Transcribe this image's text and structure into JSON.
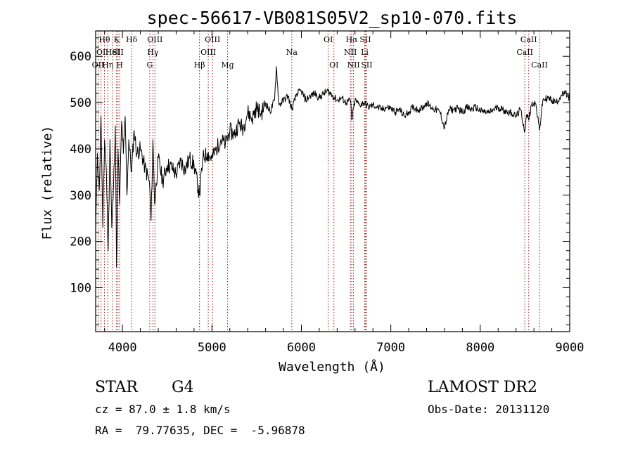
{
  "chart_data": {
    "type": "line",
    "title": "spec-56617-VB081S05V2_sp10-070.fits",
    "xlabel": "Wavelength (Å)",
    "ylabel": "Flux (relative)",
    "xlim": [
      3700,
      9000
    ],
    "ylim": [
      5,
      655
    ],
    "xticks": [
      4000,
      5000,
      6000,
      7000,
      8000,
      9000
    ],
    "yticks": [
      100,
      200,
      300,
      400,
      500,
      600
    ],
    "grid": false,
    "line_color": "#000000",
    "marker_color": "#8b1a1a",
    "series": [
      {
        "x": [
          3700,
          3720,
          3740,
          3760,
          3780,
          3800,
          3820,
          3840,
          3860,
          3880,
          3900,
          3920,
          3933,
          3950,
          3968,
          3990,
          4010,
          4030,
          4050,
          4070,
          4102,
          4130,
          4160,
          4200,
          4250,
          4300,
          4320,
          4340,
          4360,
          4400,
          4450,
          4500,
          4550,
          4600,
          4650,
          4700,
          4750,
          4800,
          4861,
          4900,
          4950,
          5000,
          5050,
          5100,
          5150,
          5200,
          5250,
          5300,
          5350,
          5400,
          5450,
          5500,
          5550,
          5600,
          5650,
          5700,
          5720,
          5750,
          5800,
          5850,
          5893,
          5950,
          6000,
          6050,
          6100,
          6150,
          6200,
          6250,
          6300,
          6350,
          6400,
          6450,
          6500,
          6550,
          6563,
          6600,
          6650,
          6700,
          6750,
          6800,
          6850,
          6900,
          6950,
          7000,
          7050,
          7100,
          7150,
          7200,
          7250,
          7300,
          7350,
          7400,
          7450,
          7500,
          7550,
          7600,
          7650,
          7700,
          7750,
          7800,
          7850,
          7900,
          7950,
          8000,
          8050,
          8100,
          8150,
          8200,
          8250,
          8300,
          8350,
          8400,
          8450,
          8498,
          8520,
          8542,
          8570,
          8600,
          8620,
          8662,
          8700,
          8750,
          8800,
          8850,
          8900,
          8950,
          9000
        ],
        "y": [
          220,
          390,
          310,
          470,
          230,
          420,
          350,
          180,
          420,
          230,
          320,
          450,
          145,
          400,
          280,
          460,
          390,
          470,
          300,
          420,
          350,
          440,
          390,
          400,
          360,
          330,
          245,
          420,
          280,
          380,
          330,
          365,
          360,
          345,
          375,
          355,
          380,
          365,
          300,
          380,
          390,
          380,
          400,
          420,
          410,
          440,
          430,
          455,
          445,
          480,
          465,
          490,
          475,
          500,
          480,
          505,
          578,
          495,
          505,
          515,
          485,
          520,
          525,
          505,
          515,
          520,
          510,
          520,
          525,
          515,
          505,
          510,
          500,
          505,
          462,
          505,
          495,
          500,
          490,
          495,
          490,
          485,
          490,
          488,
          480,
          485,
          470,
          480,
          490,
          485,
          488,
          500,
          490,
          485,
          480,
          445,
          485,
          485,
          488,
          480,
          490,
          485,
          490,
          482,
          480,
          478,
          485,
          490,
          485,
          480,
          478,
          470,
          485,
          438,
          475,
          462,
          495,
          500,
          498,
          440,
          505,
          510,
          505,
          500,
          515,
          520,
          510
        ]
      }
    ],
    "lines": [
      {
        "label": "Hθ",
        "x": 3798,
        "row": 1
      },
      {
        "label": "OII",
        "x": 3727,
        "row": 3
      },
      {
        "label": "OI",
        "x": 3760,
        "row": 2
      },
      {
        "label": "Hη",
        "x": 3835,
        "row": 3
      },
      {
        "label": "HeI",
        "x": 3889,
        "row": 2
      },
      {
        "label": "K",
        "x": 3934,
        "row": 1
      },
      {
        "label": "SII",
        "x": 3950,
        "row": 2
      },
      {
        "label": "H",
        "x": 3969,
        "row": 3
      },
      {
        "label": "Hδ",
        "x": 4102,
        "row": 1
      },
      {
        "label": "OIII",
        "x": 4363,
        "row": 1
      },
      {
        "label": "Hγ",
        "x": 4341,
        "row": 2
      },
      {
        "label": "G",
        "x": 4305,
        "row": 3
      },
      {
        "label": "OIII",
        "x": 5007,
        "row": 1
      },
      {
        "label": "OIII",
        "x": 4959,
        "row": 2
      },
      {
        "label": "Hβ",
        "x": 4861,
        "row": 3
      },
      {
        "label": "Mg",
        "x": 5175,
        "row": 3
      },
      {
        "label": "Na",
        "x": 5893,
        "row": 2
      },
      {
        "label": "OI",
        "x": 6300,
        "row": 1
      },
      {
        "label": "OI",
        "x": 6364,
        "row": 3
      },
      {
        "label": "Hα",
        "x": 6563,
        "row": 1
      },
      {
        "label": "SII",
        "x": 6716,
        "row": 1
      },
      {
        "label": "NII",
        "x": 6548,
        "row": 2
      },
      {
        "label": "Li",
        "x": 6708,
        "row": 2
      },
      {
        "label": "NII",
        "x": 6583,
        "row": 3
      },
      {
        "label": "SII",
        "x": 6731,
        "row": 3
      },
      {
        "label": "CaII",
        "x": 8542,
        "row": 1
      },
      {
        "label": "CaII",
        "x": 8498,
        "row": 2
      },
      {
        "label": "CaII",
        "x": 8662,
        "row": 3
      }
    ]
  },
  "info": {
    "object_class": "STAR",
    "subclass": "G4",
    "survey": "LAMOST DR2",
    "redshift": "cz = 87.0 ± 1.8 km/s",
    "obs_date": "Obs-Date: 20131120",
    "coords": "RA =  79.77635, DEC =  -5.96878"
  }
}
